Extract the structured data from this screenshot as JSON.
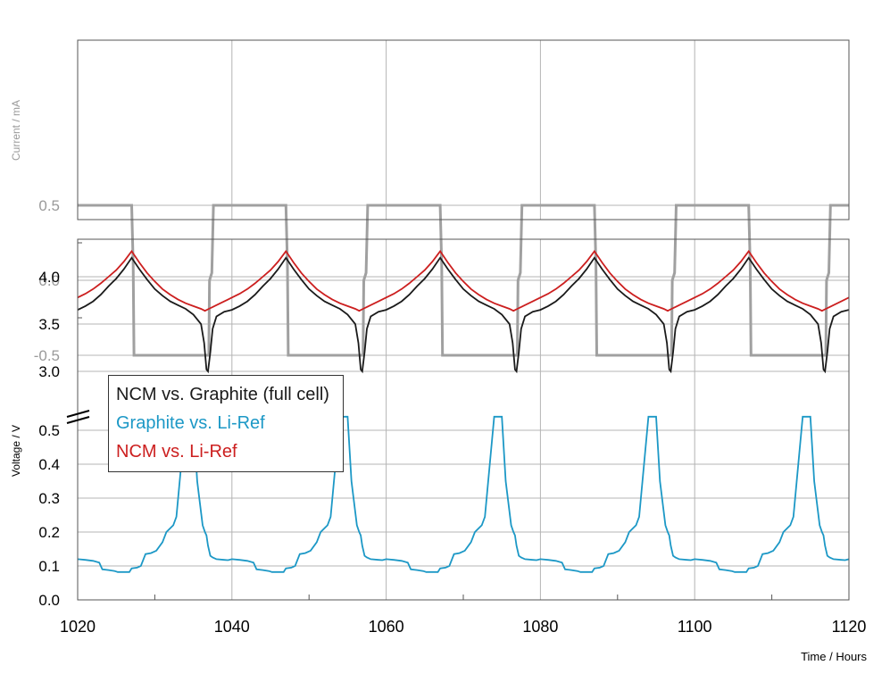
{
  "colors": {
    "current": "#a0a0a0",
    "full_cell": "#1a1a1a",
    "graphite": "#1c98c6",
    "ncm": "#cc1f1f",
    "grid": "#b4b4b4",
    "axis_text": "#000000",
    "current_axis_text": "#9a9a9a"
  },
  "chart_data": [
    {
      "type": "line",
      "panel": "current",
      "ylabel": "Current / mA",
      "xlim": [
        1020,
        1120
      ],
      "ylim": [
        -0.6,
        0.6
      ],
      "yticks": [
        "0.5",
        "0.0",
        "-0.5"
      ],
      "ytick_values": [
        0.5,
        0.0,
        -0.5
      ],
      "grid": true,
      "series": [
        {
          "key": "current",
          "description": "square-wave charge/discharge current, 20 h period",
          "x": [
            1020,
            1027.0,
            1027.2,
            1027.3,
            1037.0,
            1037.1,
            1037.4,
            1037.6,
            1047.0,
            1047.2,
            1047.3,
            1057.0,
            1057.1,
            1057.4,
            1057.6,
            1067.0,
            1067.2,
            1067.3,
            1077.0,
            1077.1,
            1077.4,
            1077.6,
            1087.0,
            1087.2,
            1087.3,
            1097.0,
            1097.1,
            1097.4,
            1097.6,
            1107.0,
            1107.2,
            1107.3,
            1117.0,
            1117.1,
            1117.4,
            1117.6,
            1120
          ],
          "y": [
            0.5,
            0.5,
            0.1,
            -0.5,
            -0.5,
            0.0,
            0.05,
            0.5,
            0.5,
            0.1,
            -0.5,
            -0.5,
            0.0,
            0.05,
            0.5,
            0.5,
            0.1,
            -0.5,
            -0.5,
            0.0,
            0.05,
            0.5,
            0.5,
            0.1,
            -0.5,
            -0.5,
            0.0,
            0.05,
            0.5,
            0.5,
            0.1,
            -0.5,
            -0.5,
            0.0,
            0.05,
            0.5,
            0.5
          ]
        }
      ]
    },
    {
      "type": "line",
      "panel": "voltage",
      "ylabel": "Voltage / V",
      "xlabel": "Time / Hours",
      "xlim": [
        1020,
        1120
      ],
      "xticks": [
        "1020",
        "1040",
        "1060",
        "1080",
        "1100",
        "1120"
      ],
      "xtick_values": [
        1020,
        1040,
        1060,
        1080,
        1100,
        1120
      ],
      "broken_axis": true,
      "upper_ylim": [
        3.0,
        4.4
      ],
      "upper_yticks": [
        "4.0",
        "3.5",
        "3.0"
      ],
      "upper_ytick_values": [
        4.0,
        3.5,
        3.0
      ],
      "lower_ylim": [
        0.0,
        0.55
      ],
      "lower_yticks": [
        "0.5",
        "0.4",
        "0.3",
        "0.2",
        "0.1",
        "0.0"
      ],
      "lower_ytick_values": [
        0.5,
        0.4,
        0.3,
        0.2,
        0.1,
        0.0
      ],
      "grid": true,
      "legend_position": "upper-left of lower segment",
      "period_hours": 20,
      "cycle_peak_times": [
        1027,
        1047,
        1067,
        1087,
        1107
      ],
      "series": [
        {
          "key": "full_cell",
          "name": "NCM vs. Graphite (full cell)",
          "segment": "upper",
          "cycle_x_offset": [
            -7,
            -6,
            -5,
            -4,
            -3,
            -2,
            -1,
            0,
            1,
            2,
            3,
            4,
            5,
            6,
            7,
            8,
            9,
            9.4,
            9.7,
            9.9,
            10.2,
            10.5,
            11,
            12,
            13
          ],
          "cycle_y": [
            3.65,
            3.69,
            3.74,
            3.81,
            3.9,
            3.98,
            4.08,
            4.2,
            4.08,
            3.97,
            3.87,
            3.8,
            3.74,
            3.7,
            3.66,
            3.6,
            3.5,
            3.3,
            3.02,
            3.0,
            3.2,
            3.45,
            3.58,
            3.63,
            3.65
          ]
        },
        {
          "key": "ncm",
          "name": "NCM vs. Li-Ref",
          "segment": "upper",
          "cycle_x_offset": [
            -7,
            -6,
            -5,
            -4,
            -3,
            -2,
            -1,
            0,
            1,
            2,
            3,
            4,
            5,
            6,
            7,
            8,
            9,
            9.5,
            10,
            10.5,
            11,
            12,
            13
          ],
          "cycle_y": [
            3.78,
            3.82,
            3.87,
            3.93,
            4.0,
            4.07,
            4.16,
            4.27,
            4.15,
            4.04,
            3.95,
            3.87,
            3.81,
            3.76,
            3.72,
            3.69,
            3.66,
            3.64,
            3.66,
            3.68,
            3.7,
            3.74,
            3.78
          ]
        },
        {
          "key": "graphite",
          "name": "Graphite vs. Li-Ref",
          "segment": "lower",
          "cycle_x_offset": [
            -7,
            -6,
            -5,
            -4.2,
            -3.8,
            -3,
            -2.2,
            -1.8,
            -1,
            -0.3,
            0,
            0.7,
            1.2,
            1.8,
            2.5,
            3.2,
            4,
            4.5,
            5.4,
            5.8,
            7,
            8,
            8.5,
            9.2,
            9.5,
            9.7,
            9.9,
            10.2,
            10.5,
            11,
            12,
            12.5,
            13
          ],
          "cycle_y": [
            0.12,
            0.118,
            0.115,
            0.11,
            0.09,
            0.088,
            0.085,
            0.082,
            0.082,
            0.082,
            0.093,
            0.095,
            0.1,
            0.135,
            0.138,
            0.145,
            0.17,
            0.2,
            0.22,
            0.245,
            0.54,
            0.54,
            0.35,
            0.22,
            0.2,
            0.19,
            0.16,
            0.13,
            0.125,
            0.12,
            0.118,
            0.117,
            0.12
          ]
        }
      ]
    }
  ]
}
